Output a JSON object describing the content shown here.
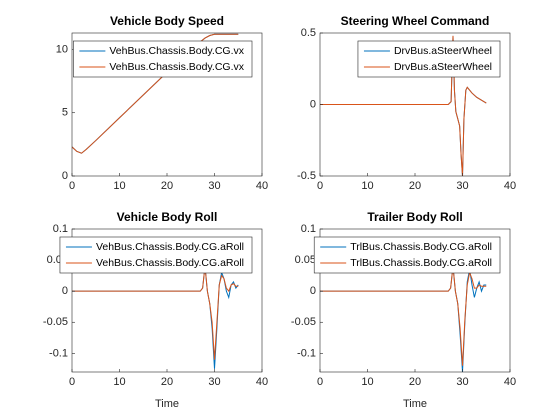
{
  "chart_data": [
    {
      "type": "line",
      "title": "Vehicle Body Speed",
      "x": [
        0,
        1,
        2,
        3,
        5,
        10,
        15,
        20,
        25,
        28,
        29,
        30,
        32,
        35
      ],
      "series": [
        {
          "name": "VehBus.Chassis.Body.CG.vx",
          "color": "#0072bd",
          "values": [
            2.3,
            1.95,
            1.8,
            2.1,
            2.8,
            4.6,
            6.4,
            8.2,
            10.0,
            10.9,
            11.1,
            11.2,
            11.2,
            11.2
          ]
        },
        {
          "name": "VehBus.Chassis.Body.CG.vx",
          "color": "#d95319",
          "values": [
            2.3,
            1.95,
            1.8,
            2.1,
            2.8,
            4.6,
            6.4,
            8.2,
            10.0,
            10.9,
            11.1,
            11.2,
            11.2,
            11.2
          ]
        }
      ],
      "xlim": [
        0,
        40
      ],
      "xticks": [
        0,
        10,
        20,
        30,
        40
      ],
      "ylim": [
        0,
        11.3
      ],
      "yticks": [
        0,
        5,
        10
      ],
      "legend": "northeast"
    },
    {
      "type": "line",
      "title": "Steering Wheel Command",
      "x": [
        0,
        27,
        27.6,
        28,
        28.3,
        28.6,
        29,
        29.4,
        29.7,
        30,
        30.3,
        30.7,
        31,
        32,
        33,
        34,
        35
      ],
      "series": [
        {
          "name": "DrvBus.aSteerWheel",
          "color": "#0072bd",
          "values": [
            0,
            0,
            0.02,
            0.48,
            0.1,
            -0.05,
            -0.1,
            -0.15,
            -0.35,
            -0.5,
            -0.1,
            0.1,
            0.12,
            0.08,
            0.05,
            0.03,
            0.01
          ]
        },
        {
          "name": "DrvBus.aSteerWheel",
          "color": "#d95319",
          "values": [
            0,
            0,
            0.02,
            0.48,
            0.1,
            -0.05,
            -0.1,
            -0.15,
            -0.35,
            -0.5,
            -0.1,
            0.1,
            0.12,
            0.08,
            0.05,
            0.03,
            0.01
          ]
        }
      ],
      "xlim": [
        0,
        40
      ],
      "xticks": [
        0,
        10,
        20,
        30,
        40
      ],
      "ylim": [
        -0.5,
        0.5
      ],
      "yticks": [
        -0.5,
        0,
        0.5
      ],
      "legend": "northeast"
    },
    {
      "type": "line",
      "title": "Vehicle Body Roll",
      "x_label": "Time",
      "x": [
        0,
        27,
        27.5,
        28,
        28.5,
        29,
        29.5,
        30,
        30.5,
        31,
        31.5,
        32,
        32.5,
        33,
        33.5,
        34,
        34.5,
        35
      ],
      "series": [
        {
          "name": "VehBus.Chassis.Body.CG.aRoll",
          "color": "#0072bd",
          "values": [
            0,
            0,
            0.005,
            0.04,
            0.0,
            -0.02,
            -0.06,
            -0.125,
            -0.06,
            0.01,
            0.03,
            0.02,
            0.0,
            -0.01,
            0.01,
            0.015,
            0.005,
            0.01
          ]
        },
        {
          "name": "VehBus.Chassis.Body.CG.aRoll",
          "color": "#d95319",
          "values": [
            0,
            0,
            0.005,
            0.04,
            0.0,
            -0.02,
            -0.05,
            -0.11,
            -0.05,
            0.01,
            0.025,
            0.02,
            0.005,
            0.0,
            0.01,
            0.012,
            0.008,
            0.008
          ]
        }
      ],
      "xlim": [
        0,
        40
      ],
      "xticks": [
        0,
        10,
        20,
        30,
        40
      ],
      "ylim": [
        -0.13,
        0.1
      ],
      "yticks": [
        -0.1,
        -0.05,
        0,
        0.05,
        0.1
      ],
      "legend": "northeast"
    },
    {
      "type": "line",
      "title": "Trailer Body Roll",
      "x_label": "Time",
      "x": [
        0,
        27,
        27.5,
        28,
        28.5,
        29,
        29.5,
        30,
        30.5,
        31,
        31.5,
        32,
        32.5,
        33,
        33.5,
        34,
        34.5,
        35
      ],
      "series": [
        {
          "name": "TrlBus.Chassis.Body.CG.aRoll",
          "color": "#0072bd",
          "values": [
            0,
            0,
            0.005,
            0.04,
            0.0,
            -0.02,
            -0.07,
            -0.13,
            -0.05,
            0.015,
            0.035,
            0.01,
            -0.01,
            0.005,
            0.015,
            0.0,
            0.01,
            0.01
          ]
        },
        {
          "name": "TrlBus.Chassis.Body.CG.aRoll",
          "color": "#d95319",
          "values": [
            0,
            0,
            0.005,
            0.04,
            0.0,
            -0.02,
            -0.06,
            -0.12,
            -0.045,
            0.01,
            0.03,
            0.02,
            0.005,
            0.005,
            0.01,
            0.008,
            0.008,
            0.008
          ]
        }
      ],
      "xlim": [
        0,
        40
      ],
      "xticks": [
        0,
        10,
        20,
        30,
        40
      ],
      "ylim": [
        -0.13,
        0.1
      ],
      "yticks": [
        -0.1,
        -0.05,
        0,
        0.05,
        0.1
      ],
      "legend": "northeast"
    }
  ]
}
